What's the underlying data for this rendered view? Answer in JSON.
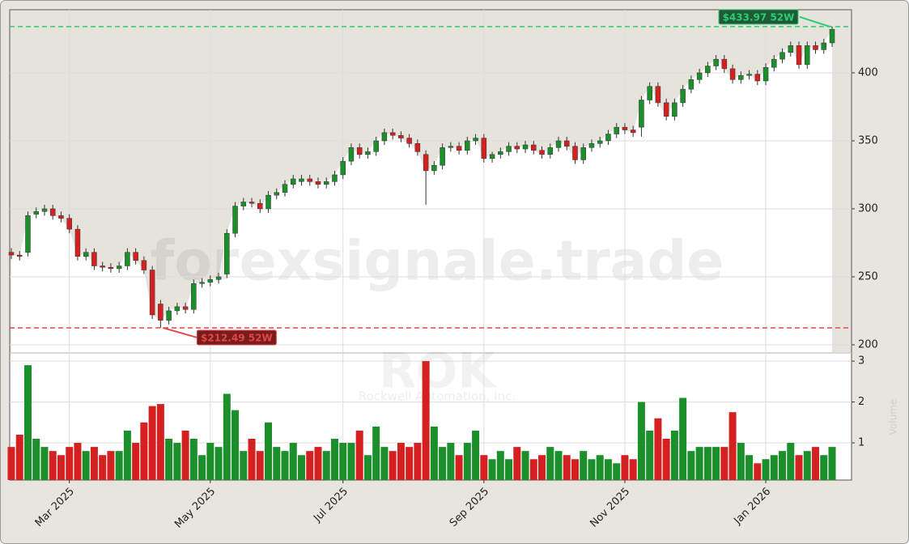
{
  "chart_data": {
    "type": "candlestick",
    "watermarks": [
      "forexsignale.trade",
      "ROK",
      "Rockwell Automation, Inc."
    ],
    "categories": [
      null,
      null,
      null,
      null,
      null,
      null,
      null,
      "Mar 2025",
      null,
      null,
      null,
      null,
      null,
      null,
      null,
      null,
      null,
      null,
      null,
      null,
      null,
      null,
      null,
      null,
      "May 2025",
      null,
      null,
      null,
      null,
      null,
      null,
      null,
      null,
      null,
      null,
      null,
      null,
      null,
      null,
      null,
      "Jul 2025",
      null,
      null,
      null,
      null,
      null,
      null,
      null,
      null,
      null,
      null,
      null,
      null,
      null,
      null,
      null,
      null,
      "Sep 2025",
      null,
      null,
      null,
      null,
      null,
      null,
      null,
      null,
      null,
      null,
      null,
      null,
      null,
      null,
      null,
      null,
      "Nov 2025",
      null,
      null,
      null,
      null,
      null,
      null,
      null,
      null,
      null,
      null,
      null,
      null,
      null,
      null,
      null,
      null,
      "Jan 2026",
      null,
      null,
      null,
      null,
      null,
      null,
      null,
      null
    ],
    "open": [
      268,
      266,
      268,
      296,
      298,
      300,
      295,
      293,
      285,
      265,
      268,
      258,
      257,
      256,
      258,
      268,
      262,
      255,
      230,
      218,
      225,
      228,
      226,
      245,
      246,
      248,
      252,
      282,
      302,
      305,
      304,
      300,
      310,
      312,
      318,
      320,
      322,
      320,
      318,
      320,
      325,
      335,
      345,
      340,
      342,
      350,
      356,
      354,
      352,
      348,
      340,
      328,
      332,
      345,
      346,
      343,
      350,
      352,
      337,
      340,
      342,
      346,
      344,
      347,
      343,
      340,
      345,
      350,
      346,
      336,
      345,
      348,
      350,
      355,
      360,
      358,
      360,
      380,
      390,
      378,
      368,
      378,
      388,
      395,
      400,
      405,
      410,
      403,
      395,
      398,
      399,
      394,
      404,
      410,
      415,
      420,
      406,
      420,
      417,
      422
    ],
    "high": [
      271,
      269,
      298,
      301,
      303,
      303,
      298,
      296,
      288,
      271,
      271,
      261,
      260,
      261,
      271,
      271,
      265,
      258,
      233,
      228,
      231,
      231,
      248,
      249,
      251,
      253,
      285,
      305,
      308,
      308,
      307,
      313,
      315,
      321,
      325,
      325,
      325,
      323,
      323,
      328,
      338,
      348,
      348,
      345,
      353,
      359,
      359,
      357,
      355,
      351,
      343,
      335,
      348,
      349,
      349,
      353,
      355,
      355,
      342,
      345,
      349,
      349,
      350,
      350,
      346,
      348,
      353,
      353,
      349,
      348,
      351,
      353,
      358,
      363,
      363,
      361,
      383,
      393,
      393,
      381,
      381,
      391,
      398,
      403,
      408,
      413,
      413,
      406,
      401,
      402,
      402,
      407,
      413,
      418,
      423,
      423,
      423,
      423,
      425,
      433.97
    ],
    "low": [
      263,
      262,
      265,
      293,
      295,
      292,
      290,
      282,
      262,
      262,
      255,
      254,
      253,
      253,
      255,
      259,
      252,
      219,
      212.49,
      215,
      222,
      223,
      223,
      242,
      243,
      245,
      249,
      279,
      299,
      301,
      297,
      297,
      307,
      309,
      315,
      317,
      317,
      315,
      315,
      317,
      322,
      332,
      337,
      337,
      339,
      347,
      351,
      349,
      345,
      339,
      303,
      325,
      329,
      342,
      340,
      340,
      347,
      334,
      334,
      337,
      339,
      341,
      341,
      340,
      337,
      337,
      342,
      343,
      333,
      333,
      342,
      345,
      347,
      352,
      355,
      353,
      353,
      377,
      375,
      365,
      365,
      375,
      385,
      392,
      397,
      402,
      400,
      392,
      392,
      395,
      391,
      391,
      401,
      407,
      412,
      403,
      403,
      414,
      414,
      419
    ],
    "close": [
      266,
      265,
      295,
      298,
      300,
      295,
      293,
      285,
      265,
      268,
      258,
      257,
      256,
      258,
      268,
      262,
      255,
      222,
      218,
      225,
      228,
      226,
      245,
      246,
      248,
      250,
      282,
      302,
      305,
      304,
      300,
      310,
      312,
      318,
      322,
      322,
      320,
      318,
      320,
      325,
      335,
      345,
      340,
      342,
      350,
      356,
      354,
      352,
      348,
      342,
      328,
      332,
      345,
      346,
      343,
      350,
      352,
      337,
      340,
      342,
      346,
      344,
      347,
      343,
      340,
      345,
      350,
      346,
      336,
      345,
      348,
      350,
      355,
      360,
      358,
      356,
      380,
      390,
      378,
      368,
      378,
      388,
      395,
      400,
      405,
      410,
      403,
      395,
      398,
      399,
      394,
      404,
      410,
      415,
      420,
      406,
      420,
      417,
      422,
      432
    ],
    "volume": [
      0.9,
      1.2,
      2.9,
      1.1,
      0.9,
      0.8,
      0.7,
      0.9,
      1.0,
      0.8,
      0.9,
      0.7,
      0.8,
      0.8,
      1.3,
      1.0,
      1.5,
      1.9,
      1.95,
      1.1,
      1.0,
      1.3,
      1.1,
      0.7,
      1.0,
      0.9,
      2.2,
      1.8,
      0.8,
      1.1,
      0.8,
      1.5,
      0.9,
      0.8,
      1.0,
      0.7,
      0.8,
      0.9,
      0.8,
      1.1,
      1.0,
      1.0,
      1.3,
      0.7,
      1.4,
      0.9,
      0.8,
      1.0,
      0.9,
      1.0,
      3.0,
      1.4,
      0.9,
      1.0,
      0.7,
      1.0,
      1.3,
      0.7,
      0.6,
      0.8,
      0.6,
      0.9,
      0.8,
      0.6,
      0.7,
      0.9,
      0.8,
      0.7,
      0.6,
      0.8,
      0.6,
      0.7,
      0.6,
      0.5,
      0.7,
      0.6,
      2.0,
      1.3,
      1.6,
      1.1,
      1.3,
      2.1,
      0.8,
      0.9,
      0.9,
      0.9,
      0.9,
      1.75,
      1.0,
      0.7,
      0.5,
      0.6,
      0.7,
      0.8,
      1.0,
      0.7,
      0.8,
      0.9,
      0.7,
      0.9
    ],
    "up_color": "#1a8f2a",
    "down_color": "#d42020",
    "ylim": [
      194.6,
      446.4
    ],
    "yticks": [
      200,
      250,
      300,
      350,
      400
    ],
    "volume_ylim": [
      0.09,
      3.18
    ],
    "volume_yticks": [
      1,
      2,
      3
    ],
    "volume_label": "Volume",
    "grid": true,
    "annotations": [
      {
        "value": 433.97,
        "label": "$433.97 52W",
        "color": "#2ecc71"
      },
      {
        "value": 212.49,
        "label": "$212.49 52W",
        "color": "#e04848"
      }
    ]
  }
}
